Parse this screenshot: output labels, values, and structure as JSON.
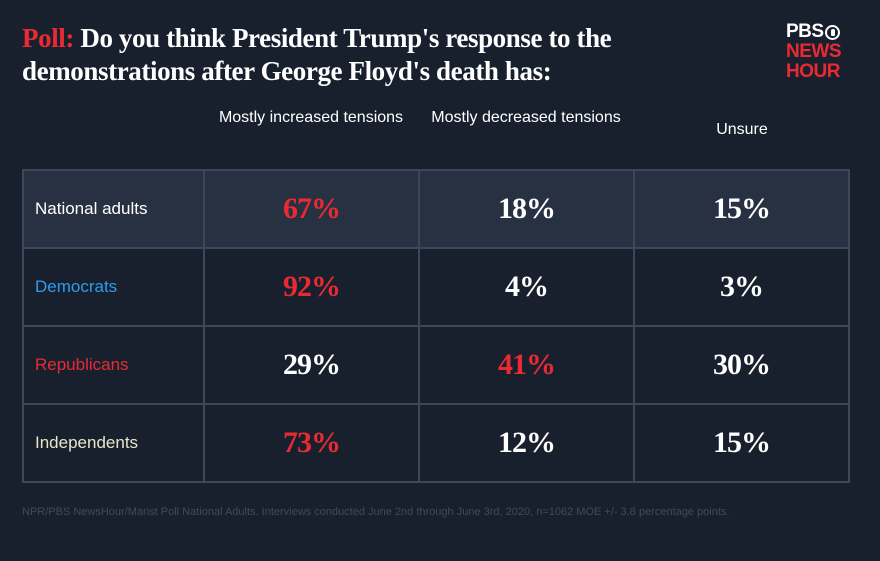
{
  "title": {
    "prefix": "Poll:",
    "text": " Do you think President Trump's response to the demonstrations after George Floyd's death has:"
  },
  "logo": {
    "line1": "PBS",
    "line2": "NEWS",
    "line3": "HOUR",
    "icon": "pbs-head-icon"
  },
  "colors": {
    "background": "#18202e",
    "accent_red": "#ea2a33",
    "democrat_blue": "#2d9cf0",
    "independent_cream": "#e8e6c8",
    "highlight_row": "#283142",
    "grid": "#3c475a"
  },
  "chart_data": {
    "type": "table",
    "title": "Poll: Do you think President Trump's response to the demonstrations after George Floyd's death has:",
    "columns": [
      "",
      "Mostly increased tensions",
      "Mostly decreased tensions",
      "Unsure"
    ],
    "rows": [
      {
        "label": "National adults",
        "label_color": "#ffffff",
        "values": [
          "67%",
          "18%",
          "15%"
        ],
        "highlight": [
          true,
          false,
          false
        ],
        "shaded": true
      },
      {
        "label": "Democrats",
        "label_color": "#2d9cf0",
        "values": [
          "92%",
          "4%",
          "3%"
        ],
        "highlight": [
          true,
          false,
          false
        ],
        "shaded": false
      },
      {
        "label": "Republicans",
        "label_color": "#ea2a33",
        "values": [
          "29%",
          "41%",
          "30%"
        ],
        "highlight": [
          false,
          true,
          false
        ],
        "shaded": false
      },
      {
        "label": "Independents",
        "label_color": "#e8e6c8",
        "values": [
          "73%",
          "12%",
          "15%"
        ],
        "highlight": [
          true,
          false,
          false
        ],
        "shaded": false
      }
    ]
  },
  "headers": {
    "col1": "Mostly increased tensions",
    "col2": "Mostly decreased tensions",
    "col3": "Unsure"
  },
  "footnote": "NPR/PBS NewsHour/Marist Poll National Adults. Interviews conducted June 2nd through June 3rd, 2020, n=1062 MOE +/- 3.8 percentage points."
}
